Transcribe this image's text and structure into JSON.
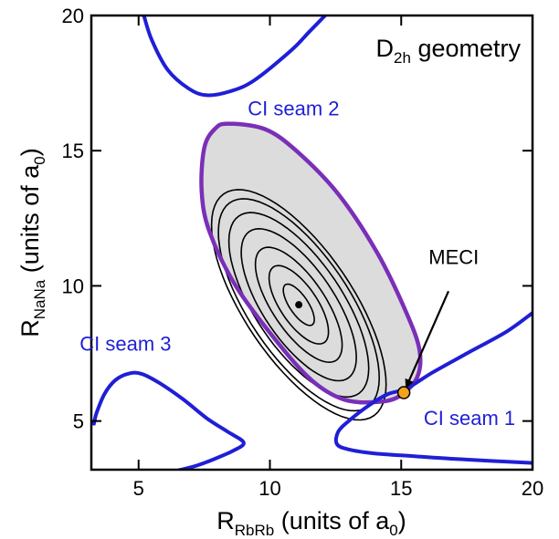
{
  "chart_data": {
    "type": "contour",
    "title": "",
    "geometry_label": {
      "main": "D",
      "sub": "2h",
      "rest": " geometry"
    },
    "xlabel": {
      "main": "R",
      "sub": "RbRb",
      "rest": " (units of a",
      "sub2": "0",
      "close": ")"
    },
    "ylabel": {
      "main": "R",
      "sub": "NaNa",
      "rest": " (units of a",
      "sub2": "0",
      "close": ")"
    },
    "xlim": [
      3.2,
      20
    ],
    "ylim": [
      3.2,
      20
    ],
    "xticks": [
      5,
      10,
      15,
      20
    ],
    "yticks": [
      5,
      10,
      15,
      20
    ],
    "grid": false,
    "colors": {
      "seam": "#1f1fd6",
      "outer_contour": "#7a2fb8",
      "fill": "#dcdcdc",
      "contour": "#000000",
      "meci": "#f4a21c"
    },
    "minimum_point": [
      11.1,
      9.3
    ],
    "contours": {
      "center": [
        11.1,
        9.3
      ],
      "angle_deg": -55,
      "semi_axes": [
        [
          0.9,
          0.35
        ],
        [
          1.7,
          0.7
        ],
        [
          2.5,
          1.0
        ],
        [
          3.3,
          1.35
        ],
        [
          4.0,
          1.65
        ],
        [
          4.6,
          1.9
        ],
        [
          5.0,
          2.05
        ]
      ],
      "outer": [
        [
          8.4,
          16.0
        ],
        [
          7.9,
          15.8
        ],
        [
          7.5,
          15.1
        ],
        [
          7.4,
          13.5
        ],
        [
          7.7,
          12.0
        ],
        [
          8.7,
          10.0
        ],
        [
          10.3,
          7.9
        ],
        [
          11.6,
          6.5
        ],
        [
          12.8,
          5.8
        ],
        [
          14.0,
          5.7
        ],
        [
          14.9,
          5.9
        ],
        [
          15.6,
          6.6
        ],
        [
          15.7,
          7.6
        ],
        [
          15.2,
          9.0
        ],
        [
          14.1,
          11.2
        ],
        [
          12.6,
          13.4
        ],
        [
          11.0,
          15.0
        ],
        [
          9.8,
          15.8
        ],
        [
          8.4,
          16.0
        ]
      ]
    },
    "series": [
      {
        "name": "CI seam 1",
        "points": [
          [
            20,
            9.0
          ],
          [
            19.0,
            8.3
          ],
          [
            17.5,
            7.5
          ],
          [
            16.2,
            6.8
          ],
          [
            15.2,
            6.2
          ],
          [
            14.5,
            6.0
          ],
          [
            13.8,
            5.6
          ],
          [
            13.0,
            5.0
          ],
          [
            12.6,
            4.6
          ],
          [
            12.55,
            4.15
          ],
          [
            13.0,
            3.95
          ],
          [
            14.0,
            3.8
          ],
          [
            15.5,
            3.7
          ],
          [
            17.0,
            3.6
          ],
          [
            18.5,
            3.52
          ],
          [
            20,
            3.45
          ]
        ]
      },
      {
        "name": "CI seam 2",
        "points": [
          [
            5.2,
            20
          ],
          [
            5.5,
            19.1
          ],
          [
            6.1,
            18.0
          ],
          [
            6.9,
            17.3
          ],
          [
            7.6,
            17.05
          ],
          [
            8.5,
            17.2
          ],
          [
            9.4,
            17.6
          ],
          [
            10.8,
            18.7
          ],
          [
            11.5,
            19.4
          ],
          [
            12.1,
            20
          ]
        ]
      },
      {
        "name": "CI seam 3",
        "points": [
          [
            3.3,
            4.9
          ],
          [
            3.4,
            5.3
          ],
          [
            3.7,
            6.0
          ],
          [
            4.1,
            6.5
          ],
          [
            4.6,
            6.75
          ],
          [
            5.1,
            6.75
          ],
          [
            5.8,
            6.4
          ],
          [
            6.7,
            5.8
          ],
          [
            7.6,
            5.1
          ],
          [
            8.4,
            4.6
          ],
          [
            9.0,
            4.2
          ],
          [
            8.6,
            3.9
          ],
          [
            7.9,
            3.6
          ],
          [
            7.2,
            3.35
          ],
          [
            6.4,
            3.15
          ]
        ]
      }
    ],
    "annotations": [
      {
        "text": "CI seam 1",
        "x": 17.6,
        "y": 4.85,
        "color": "#1f1fd6"
      },
      {
        "text": "CI seam 2",
        "x": 10.9,
        "y": 16.3,
        "color": "#1f1fd6"
      },
      {
        "text": "CI seam 3",
        "x": 4.5,
        "y": 7.6,
        "color": "#1f1fd6"
      },
      {
        "text": "MECI",
        "x": 17.0,
        "y": 10.8,
        "color": "#000000"
      }
    ],
    "meci_point": [
      15.1,
      6.05
    ],
    "meci_arrow_from": [
      16.8,
      9.8
    ]
  }
}
